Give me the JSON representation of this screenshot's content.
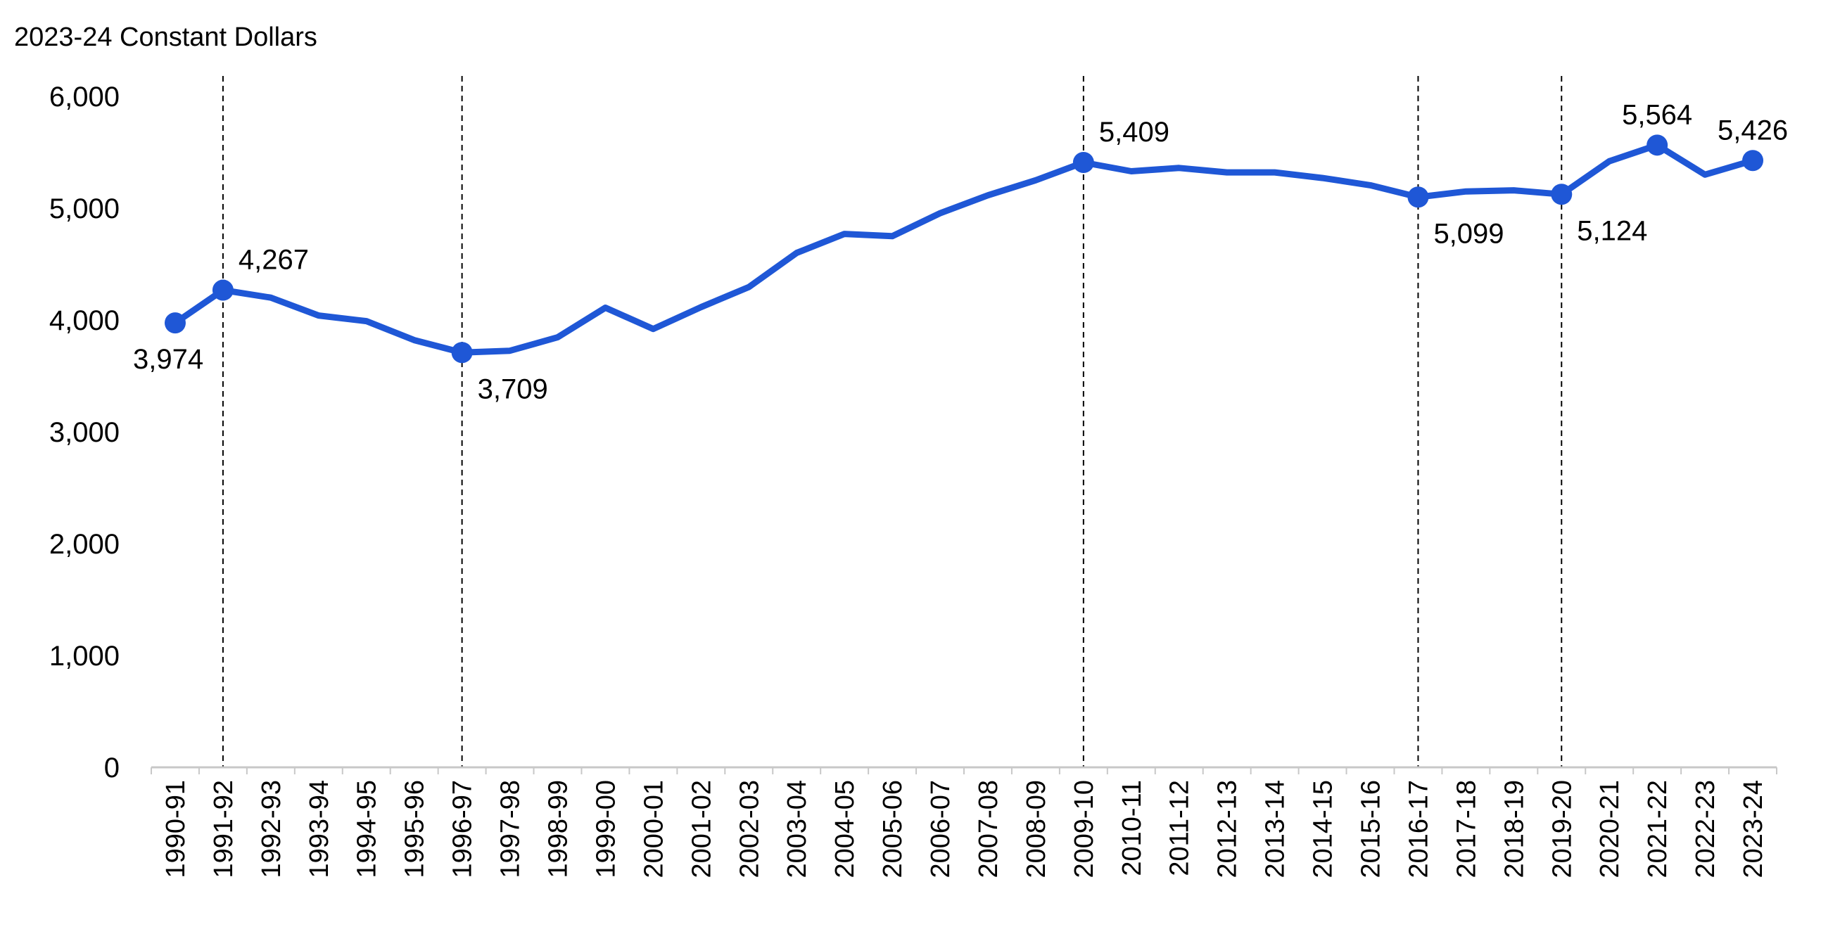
{
  "chart_data": {
    "type": "line",
    "title": "",
    "ylabel": "2023-24 Constant Dollars",
    "xlabel": "",
    "ylim": [
      0,
      6000
    ],
    "yticks": [
      0,
      1000,
      2000,
      3000,
      4000,
      5000,
      6000
    ],
    "ytick_labels": [
      "0",
      "1,000",
      "2,000",
      "3,000",
      "4,000",
      "5,000",
      "6,000"
    ],
    "grid": false,
    "line_color": "#1f57d6",
    "categories": [
      "1990-91",
      "1991-92",
      "1992-93",
      "1993-94",
      "1994-95",
      "1995-96",
      "1996-97",
      "1997-98",
      "1998-99",
      "1999-00",
      "2000-01",
      "2001-02",
      "2002-03",
      "2003-04",
      "2004-05",
      "2005-06",
      "2006-07",
      "2007-08",
      "2008-09",
      "2009-10",
      "2010-11",
      "2011-12",
      "2012-13",
      "2013-14",
      "2014-15",
      "2015-16",
      "2016-17",
      "2017-18",
      "2018-19",
      "2019-20",
      "2020-21",
      "2021-22",
      "2022-23",
      "2023-24"
    ],
    "series": [
      {
        "values": [
          3974,
          4267,
          4200,
          4040,
          3990,
          3820,
          3709,
          3725,
          3845,
          4110,
          3920,
          4115,
          4295,
          4600,
          4770,
          4750,
          4955,
          5115,
          5250,
          5409,
          5330,
          5360,
          5320,
          5320,
          5270,
          5205,
          5099,
          5150,
          5160,
          5124,
          5420,
          5564,
          5300,
          5426
        ]
      }
    ],
    "markers": [
      {
        "category": "1990-91",
        "value": 3974,
        "label": "3,974",
        "pos": "below-left"
      },
      {
        "category": "1991-92",
        "value": 4267,
        "label": "4,267",
        "pos": "above-right"
      },
      {
        "category": "1996-97",
        "value": 3709,
        "label": "3,709",
        "pos": "below-right"
      },
      {
        "category": "2009-10",
        "value": 5409,
        "label": "5,409",
        "pos": "above-right"
      },
      {
        "category": "2016-17",
        "value": 5099,
        "label": "5,099",
        "pos": "below-right"
      },
      {
        "category": "2019-20",
        "value": 5124,
        "label": "5,124",
        "pos": "below-right"
      },
      {
        "category": "2021-22",
        "value": 5564,
        "label": "5,564",
        "pos": "above"
      },
      {
        "category": "2023-24",
        "value": 5426,
        "label": "5,426",
        "pos": "above"
      }
    ],
    "reference_lines": [
      "1991-92",
      "1996-97",
      "2009-10",
      "2016-17",
      "2019-20"
    ]
  }
}
